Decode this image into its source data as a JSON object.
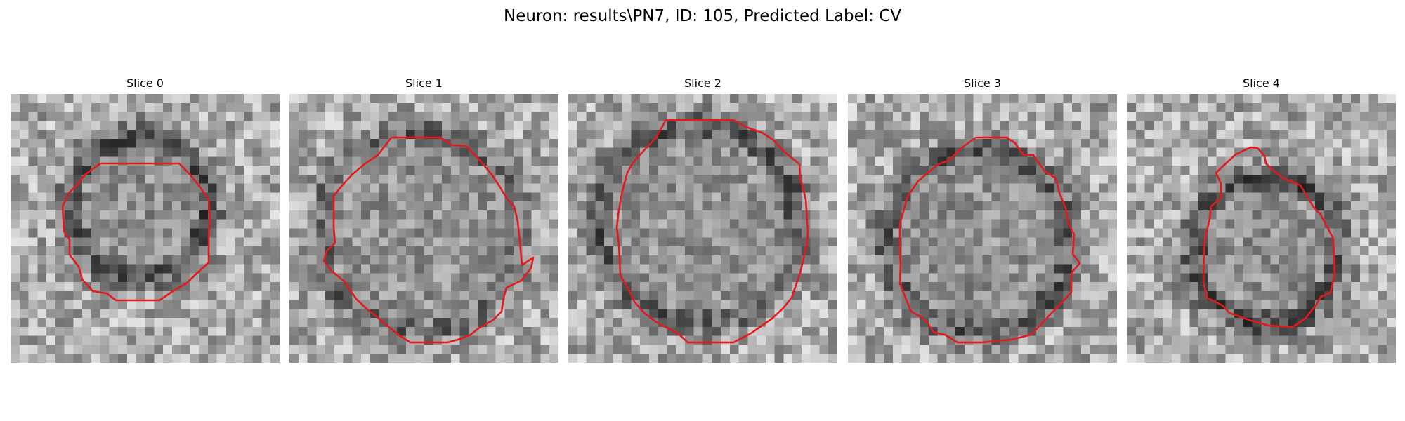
{
  "figure": {
    "title": "Neuron: results\\PN7, ID: 105, Predicted Label: CV"
  },
  "colors": {
    "background": "#ffffff",
    "contour": "#e31a1c",
    "colormap": "gray"
  },
  "panels": [
    {
      "title": "Slice 0",
      "image": "grayscale-em-patch",
      "overlay": "red-contour"
    },
    {
      "title": "Slice 1",
      "image": "grayscale-em-patch",
      "overlay": "red-contour"
    },
    {
      "title": "Slice 2",
      "image": "grayscale-em-patch",
      "overlay": "red-contour"
    },
    {
      "title": "Slice 3",
      "image": "grayscale-em-patch",
      "overlay": "red-contour"
    },
    {
      "title": "Slice 4",
      "image": "grayscale-em-patch",
      "overlay": "red-contour"
    }
  ]
}
